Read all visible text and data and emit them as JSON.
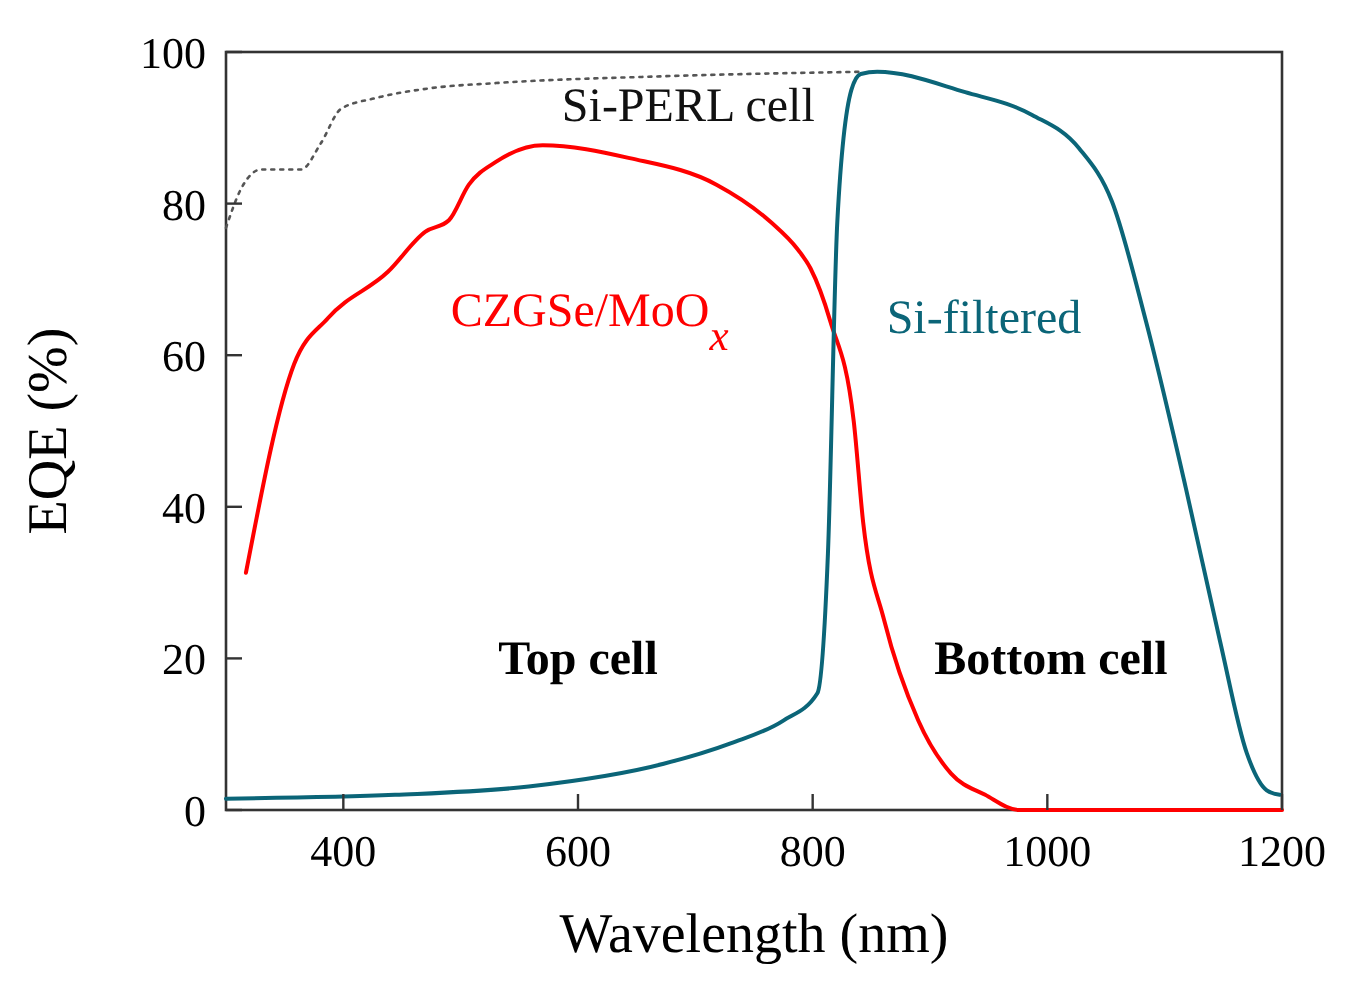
{
  "chart_data": {
    "type": "line",
    "xlabel": "Wavelength (nm)",
    "ylabel": "EQE (%)",
    "xlim": [
      300,
      1200
    ],
    "xticks": [
      400,
      600,
      800,
      1000,
      1200
    ],
    "ylim": [
      0,
      100
    ],
    "yticks": [
      0,
      20,
      40,
      60,
      80,
      100
    ],
    "grid": false,
    "annotations": [
      "Top cell",
      "Bottom cell"
    ],
    "series": [
      {
        "name": "Si-PERL cell",
        "color": "#555555",
        "line_style": "dotted",
        "x": [
          300,
          313,
          330,
          364,
          381,
          398,
          427,
          473,
          530,
          673,
          844
        ],
        "values": [
          76.8,
          82,
          84.5,
          84.5,
          88,
          92.5,
          93.9,
          95.2,
          95.9,
          96.8,
          97.4
        ]
      },
      {
        "name": "CZGSe/MoO$_{x}$",
        "color": "#ff0000",
        "line_style": "solid",
        "x": [
          317,
          358,
          387,
          438,
          470,
          490,
          507,
          530,
          570,
          644,
          718,
          764,
          787,
          798,
          815,
          835,
          843,
          861,
          890,
          918,
          947,
          976,
          1200
        ],
        "values": [
          31.3,
          58.8,
          64.9,
          71,
          76.3,
          77.8,
          82.5,
          85.5,
          87.7,
          86,
          82.5,
          77.6,
          74,
          71.5,
          64.5,
          51.3,
          38,
          25,
          11.8,
          4.8,
          2,
          0,
          0
        ]
      },
      {
        "name": "Si-filtered",
        "color": "#0b6578",
        "line_style": "solid",
        "x": [
          300,
          444,
          558,
          673,
          730,
          775,
          804,
          813,
          821,
          833,
          841,
          855,
          930,
          987,
          1027,
          1055,
          1084,
          1118,
          1147,
          1170,
          1187,
          1198
        ],
        "values": [
          1.5,
          2,
          3.1,
          6.1,
          8.8,
          11.8,
          15.4,
          33.8,
          77.6,
          95,
          97.1,
          97.4,
          94.7,
          91.7,
          87.3,
          80.3,
          64.5,
          42.5,
          22.4,
          7.5,
          2.6,
          2
        ]
      }
    ]
  }
}
